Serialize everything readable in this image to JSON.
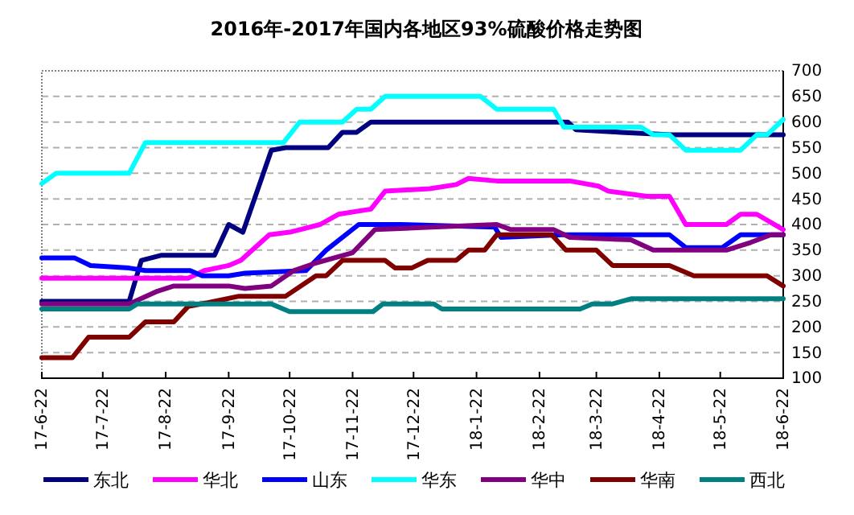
{
  "chart_data": {
    "type": "line",
    "title": "2016年-2017年国内各地区93%硫酸价格走势图",
    "xlim": [
      "2017-06-22",
      "2018-06-22"
    ],
    "xticks": [
      {
        "value": "2017-06-22",
        "label": "17-6-22"
      },
      {
        "value": "2017-07-22",
        "label": "17-7-22"
      },
      {
        "value": "2017-08-22",
        "label": "17-8-22"
      },
      {
        "value": "2017-09-22",
        "label": "17-9-22"
      },
      {
        "value": "2017-10-22",
        "label": "17-10-22"
      },
      {
        "value": "2017-11-22",
        "label": "17-11-22"
      },
      {
        "value": "2017-12-22",
        "label": "17-12-22"
      },
      {
        "value": "2018-01-22",
        "label": "18-1-22"
      },
      {
        "value": "2018-02-22",
        "label": "18-2-22"
      },
      {
        "value": "2018-03-22",
        "label": "18-3-22"
      },
      {
        "value": "2018-04-22",
        "label": "18-4-22"
      },
      {
        "value": "2018-05-22",
        "label": "18-5-22"
      },
      {
        "value": "2018-06-22",
        "label": "18-6-22"
      }
    ],
    "ylim": [
      100,
      700
    ],
    "yticks": [
      100,
      150,
      200,
      250,
      300,
      350,
      400,
      450,
      500,
      550,
      600,
      650,
      700
    ],
    "grid": "y",
    "legend": "bottom",
    "marker": "none",
    "line_style": "solid",
    "series": [
      {
        "name": "东北",
        "color": "#000080",
        "x": [
          "2017-06-22",
          "2017-08-04",
          "2017-08-10",
          "2017-08-20",
          "2017-09-15",
          "2017-09-22",
          "2017-09-29",
          "2017-10-13",
          "2017-10-20",
          "2017-11-10",
          "2017-11-17",
          "2017-11-24",
          "2017-12-01",
          "2018-03-08",
          "2018-03-12",
          "2018-04-03",
          "2018-04-28",
          "2018-06-22"
        ],
        "values": [
          250,
          250,
          330,
          340,
          340,
          400,
          385,
          545,
          550,
          550,
          580,
          580,
          600,
          600,
          585,
          580,
          575,
          575
        ]
      },
      {
        "name": "华北",
        "color": "#ff00ff",
        "x": [
          "2017-06-22",
          "2017-09-02",
          "2017-09-10",
          "2017-09-22",
          "2017-09-28",
          "2017-10-12",
          "2017-10-22",
          "2017-11-06",
          "2017-11-15",
          "2017-12-01",
          "2017-12-08",
          "2017-12-30",
          "2018-01-12",
          "2018-01-18",
          "2018-02-01",
          "2018-03-09",
          "2018-03-23",
          "2018-03-28",
          "2018-04-16",
          "2018-04-27",
          "2018-05-05",
          "2018-05-25",
          "2018-06-01",
          "2018-06-09",
          "2018-06-22"
        ],
        "values": [
          295,
          295,
          310,
          320,
          330,
          380,
          385,
          400,
          420,
          430,
          465,
          470,
          478,
          490,
          485,
          485,
          475,
          465,
          455,
          455,
          400,
          400,
          420,
          420,
          390
        ]
      },
      {
        "name": "山东",
        "color": "#0000ff",
        "x": [
          "2017-06-22",
          "2017-07-08",
          "2017-07-16",
          "2017-08-04",
          "2017-08-12",
          "2017-09-03",
          "2017-09-09",
          "2017-09-22",
          "2017-09-30",
          "2017-10-30",
          "2017-11-09",
          "2017-11-25",
          "2017-12-15",
          "2018-01-31",
          "2018-02-03",
          "2018-03-05",
          "2018-04-27",
          "2018-05-05",
          "2018-05-23",
          "2018-06-01",
          "2018-06-22"
        ],
        "values": [
          335,
          335,
          320,
          315,
          310,
          310,
          300,
          300,
          305,
          310,
          350,
          400,
          400,
          395,
          375,
          380,
          380,
          355,
          355,
          380,
          380
        ]
      },
      {
        "name": "华东",
        "color": "#00ffff",
        "x": [
          "2017-06-22",
          "2017-06-29",
          "2017-08-04",
          "2017-08-12",
          "2017-10-19",
          "2017-10-27",
          "2017-11-17",
          "2017-11-24",
          "2017-12-01",
          "2017-12-08",
          "2018-01-24",
          "2018-02-01",
          "2018-03-01",
          "2018-03-06",
          "2018-04-13",
          "2018-04-19",
          "2018-04-27",
          "2018-05-05",
          "2018-06-01",
          "2018-06-09",
          "2018-06-14",
          "2018-06-22"
        ],
        "values": [
          480,
          500,
          500,
          560,
          560,
          600,
          600,
          625,
          625,
          650,
          650,
          625,
          625,
          590,
          590,
          575,
          575,
          545,
          545,
          575,
          575,
          605
        ]
      },
      {
        "name": "华中",
        "color": "#800080",
        "x": [
          "2017-06-22",
          "2017-08-04",
          "2017-08-18",
          "2017-08-26",
          "2017-09-22",
          "2017-09-30",
          "2017-10-13",
          "2017-10-24",
          "2017-11-04",
          "2017-11-22",
          "2017-12-03",
          "2017-12-31",
          "2018-02-01",
          "2018-02-08",
          "2018-03-01",
          "2018-03-09",
          "2018-04-08",
          "2018-04-19",
          "2018-05-25",
          "2018-06-06",
          "2018-06-16",
          "2018-06-22"
        ],
        "values": [
          245,
          245,
          270,
          280,
          280,
          275,
          280,
          310,
          325,
          345,
          390,
          395,
          400,
          390,
          390,
          375,
          370,
          350,
          350,
          365,
          380,
          380
        ]
      },
      {
        "name": "华南",
        "color": "#800000",
        "x": [
          "2017-06-22",
          "2017-07-07",
          "2017-07-15",
          "2017-08-04",
          "2017-08-12",
          "2017-08-26",
          "2017-09-02",
          "2017-09-15",
          "2017-09-27",
          "2017-10-20",
          "2017-11-04",
          "2017-11-09",
          "2017-11-17",
          "2017-12-08",
          "2017-12-13",
          "2017-12-21",
          "2017-12-29",
          "2018-01-12",
          "2018-01-18",
          "2018-01-26",
          "2018-02-01",
          "2018-02-28",
          "2018-03-07",
          "2018-03-22",
          "2018-03-30",
          "2018-04-27",
          "2018-05-09",
          "2018-06-14",
          "2018-06-22"
        ],
        "values": [
          140,
          140,
          180,
          180,
          210,
          210,
          240,
          250,
          260,
          260,
          300,
          300,
          330,
          330,
          315,
          315,
          330,
          330,
          350,
          350,
          380,
          380,
          350,
          350,
          320,
          320,
          300,
          300,
          280
        ]
      },
      {
        "name": "西北",
        "color": "#008080",
        "x": [
          "2017-06-22",
          "2017-08-04",
          "2017-08-08",
          "2017-10-13",
          "2017-10-22",
          "2017-12-02",
          "2017-12-07",
          "2018-01-01",
          "2018-01-05",
          "2018-03-14",
          "2018-03-20",
          "2018-03-30",
          "2018-04-08",
          "2018-06-22"
        ],
        "values": [
          235,
          235,
          245,
          245,
          230,
          230,
          245,
          245,
          235,
          235,
          245,
          245,
          255,
          255
        ]
      }
    ]
  }
}
